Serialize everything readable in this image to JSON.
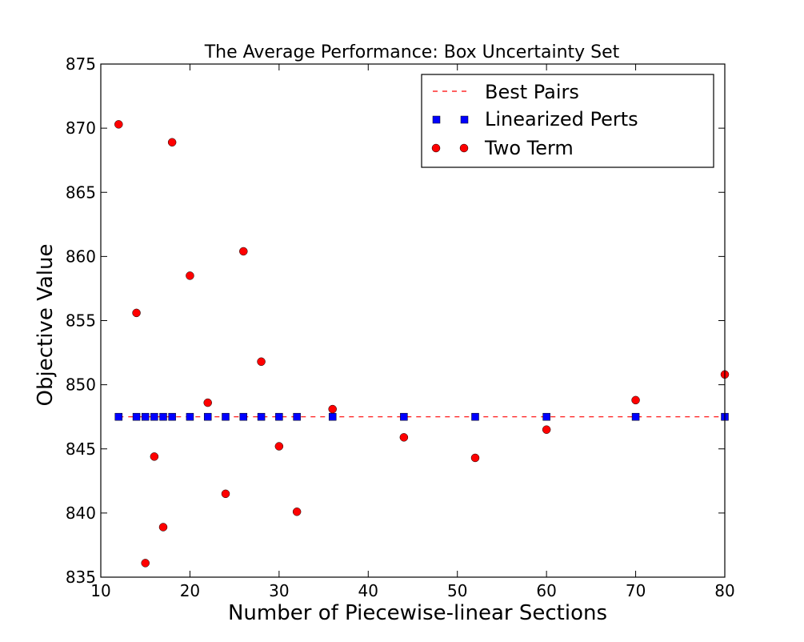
{
  "chart_data": {
    "type": "scatter",
    "title": "The Average Performance: Box Uncertainty Set",
    "xlabel": "Number of Piecewise-linear Sections",
    "ylabel": "Objective Value",
    "xlim": [
      10,
      80
    ],
    "ylim": [
      835,
      875
    ],
    "xticks": [
      10,
      20,
      30,
      40,
      50,
      60,
      70,
      80
    ],
    "yticks": [
      835,
      840,
      845,
      850,
      855,
      860,
      865,
      870,
      875
    ],
    "grid": false,
    "legend_position": "top-right",
    "series": [
      {
        "name": "Best Pairs",
        "style": "dashed-line",
        "color": "#ff0000",
        "x": [
          12,
          80
        ],
        "y": [
          847.5,
          847.5
        ]
      },
      {
        "name": "Linearized Perts",
        "style": "square-marker",
        "color": "#0000ff",
        "x": [
          12,
          14,
          15,
          16,
          17,
          18,
          20,
          22,
          24,
          26,
          28,
          30,
          32,
          36,
          44,
          52,
          60,
          70,
          80
        ],
        "y": [
          847.5,
          847.5,
          847.5,
          847.5,
          847.5,
          847.5,
          847.5,
          847.5,
          847.5,
          847.5,
          847.5,
          847.5,
          847.5,
          847.5,
          847.5,
          847.5,
          847.5,
          847.5,
          847.5
        ]
      },
      {
        "name": "Two Term",
        "style": "circle-marker",
        "color": "#ff0000",
        "x": [
          12,
          14,
          15,
          16,
          17,
          18,
          20,
          22,
          24,
          26,
          28,
          30,
          32,
          36,
          44,
          52,
          60,
          70,
          80
        ],
        "y": [
          870.3,
          855.6,
          836.1,
          844.4,
          838.9,
          868.9,
          858.5,
          848.6,
          841.5,
          860.4,
          851.8,
          845.2,
          840.1,
          848.1,
          845.9,
          844.3,
          846.5,
          848.8,
          850.8
        ]
      }
    ]
  }
}
